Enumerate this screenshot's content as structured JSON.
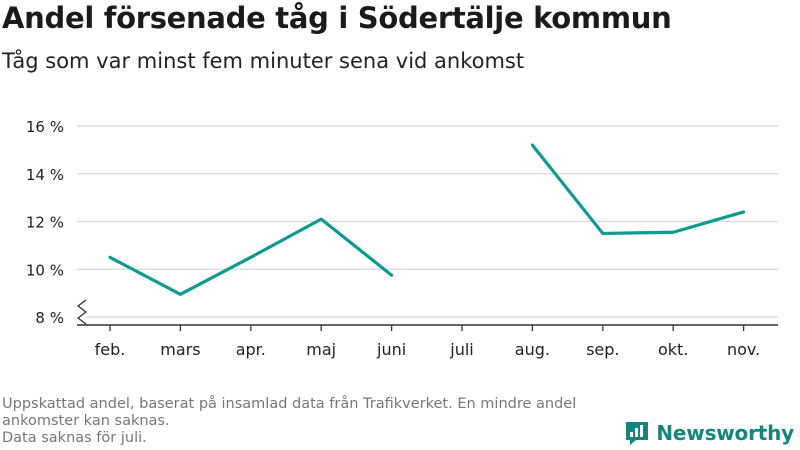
{
  "header": {
    "title": "Andel försenade tåg i Södertälje kommun",
    "subtitle": "Tåg som var minst fem minuter sena vid ankomst"
  },
  "footer": {
    "note_line1": "Uppskattad andel, baserat på insamlad data från Trafikverket. En mindre andel ankomster kan saknas.",
    "note_line2": "Data saknas för juli."
  },
  "brand": {
    "name": "Newsworthy",
    "color": "#12867c",
    "logo_icon": "bar-chart-flag-icon"
  },
  "chart_data": {
    "type": "line",
    "categories": [
      "feb.",
      "mars",
      "apr.",
      "maj",
      "juni",
      "juli",
      "aug.",
      "sep.",
      "okt.",
      "nov."
    ],
    "series": [
      {
        "values": [
          10.5,
          8.95,
          10.5,
          12.1,
          9.75,
          null,
          15.2,
          11.5,
          11.55,
          12.4
        ]
      }
    ],
    "ylim": [
      8,
      16
    ],
    "yticks": [
      8,
      10,
      12,
      14,
      16
    ],
    "ytick_labels": [
      "8 %",
      "10 %",
      "12 %",
      "14 %",
      "16 %"
    ],
    "axis_break": true,
    "grid": true,
    "line_color": "#0f9a8f",
    "grid_color": "#d8d8d8",
    "axis_color": "#333333"
  }
}
